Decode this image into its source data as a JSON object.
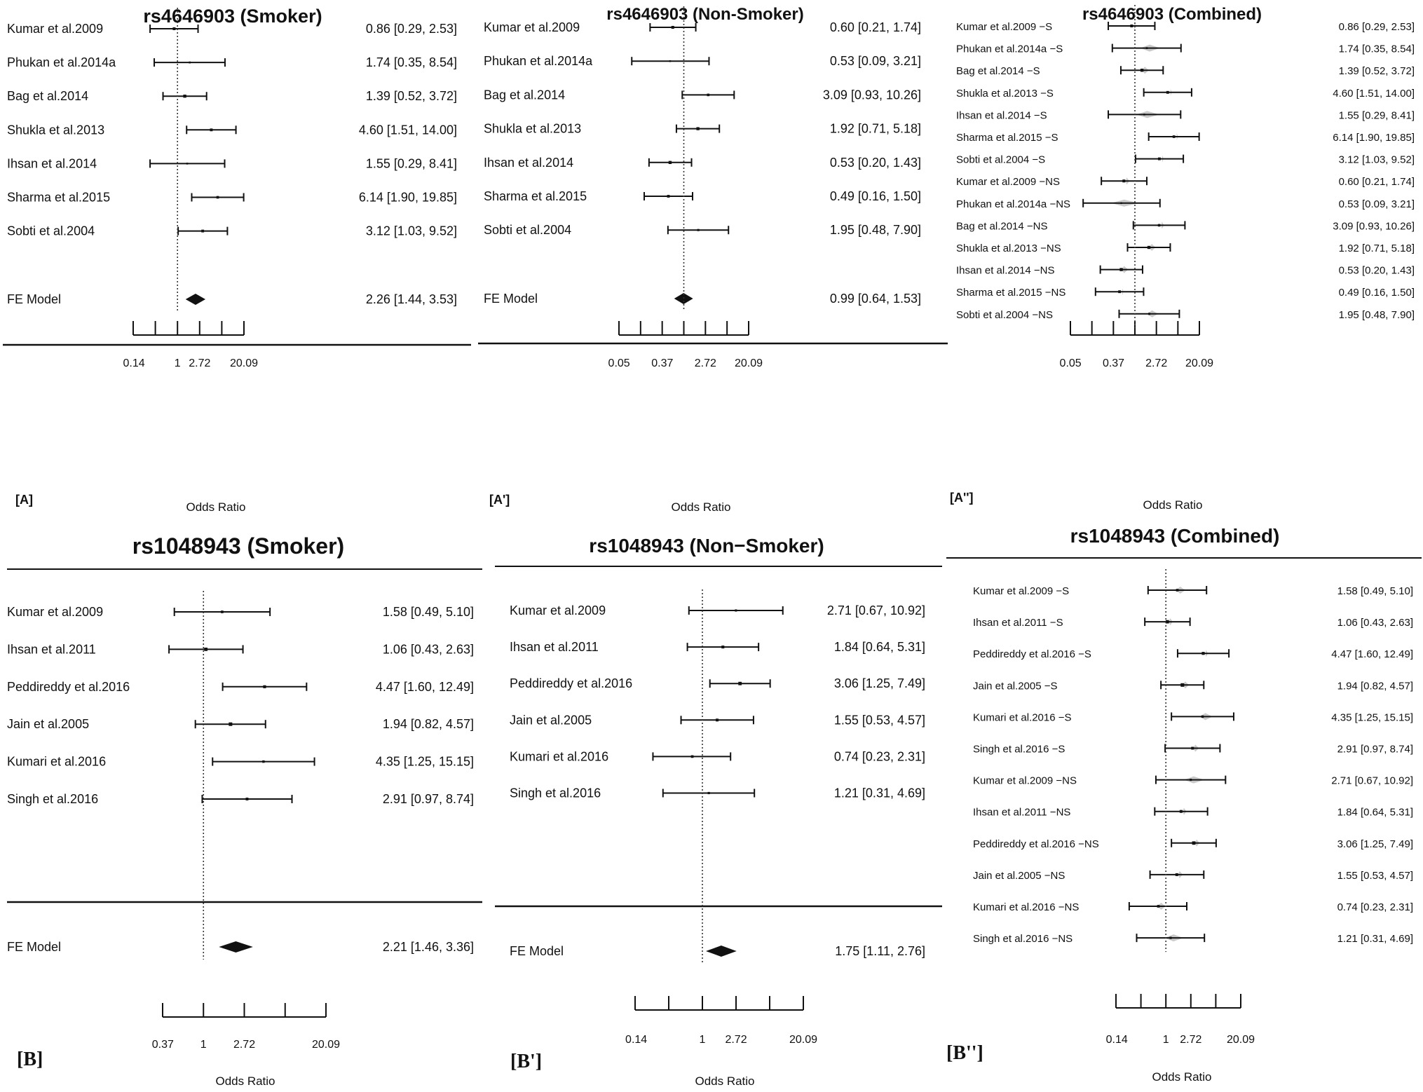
{
  "chart_data": [
    {
      "type": "forest",
      "panel_label": "[A]",
      "title": "rs4646903 (Smoker)",
      "xlabel": "Odds Ratio",
      "x_scale": "log",
      "ticks": [
        "0.14",
        "1",
        "2.72",
        "20.09"
      ],
      "studies": [
        {
          "label": "Kumar et al.2009",
          "or": 0.86,
          "lo": 0.29,
          "hi": 2.53,
          "text": "0.86 [0.29,  2.53]"
        },
        {
          "label": "Phukan et al.2014a",
          "or": 1.74,
          "lo": 0.35,
          "hi": 8.54,
          "text": "1.74 [0.35,  8.54]"
        },
        {
          "label": "Bag et al.2014",
          "or": 1.39,
          "lo": 0.52,
          "hi": 3.72,
          "text": "1.39 [0.52,  3.72]"
        },
        {
          "label": "Shukla et al.2013",
          "or": 4.6,
          "lo": 1.51,
          "hi": 14.0,
          "text": "4.60 [1.51, 14.00]"
        },
        {
          "label": "Ihsan et al.2014",
          "or": 1.55,
          "lo": 0.29,
          "hi": 8.41,
          "text": "1.55 [0.29,  8.41]"
        },
        {
          "label": "Sharma et al.2015",
          "or": 6.14,
          "lo": 1.9,
          "hi": 19.85,
          "text": "6.14 [1.90, 19.85]"
        },
        {
          "label": "Sobti et al.2004",
          "or": 3.12,
          "lo": 1.03,
          "hi": 9.52,
          "text": "3.12 [1.03,  9.52]"
        }
      ],
      "model": {
        "label": "FE Model",
        "or": 2.26,
        "lo": 1.44,
        "hi": 3.53,
        "text": "2.26 [1.44,  3.53]"
      }
    },
    {
      "type": "forest",
      "panel_label": "[A']",
      "title": "rs4646903 (Non-Smoker)",
      "xlabel": "Odds Ratio",
      "x_scale": "log",
      "ticks": [
        "0.05",
        "0.37",
        "2.72",
        "20.09"
      ],
      "studies": [
        {
          "label": "Kumar et al.2009",
          "or": 0.6,
          "lo": 0.21,
          "hi": 1.74,
          "text": "0.60 [0.21,  1.74]"
        },
        {
          "label": "Phukan et al.2014a",
          "or": 0.53,
          "lo": 0.09,
          "hi": 3.21,
          "text": "0.53 [0.09,  3.21]"
        },
        {
          "label": "Bag et al.2014",
          "or": 3.09,
          "lo": 0.93,
          "hi": 10.26,
          "text": "3.09 [0.93, 10.26]"
        },
        {
          "label": "Shukla et al.2013",
          "or": 1.92,
          "lo": 0.71,
          "hi": 5.18,
          "text": "1.92 [0.71,  5.18]"
        },
        {
          "label": "Ihsan et al.2014",
          "or": 0.53,
          "lo": 0.2,
          "hi": 1.43,
          "text": "0.53 [0.20,  1.43]"
        },
        {
          "label": "Sharma et al.2015",
          "or": 0.49,
          "lo": 0.16,
          "hi": 1.5,
          "text": "0.49 [0.16,  1.50]"
        },
        {
          "label": "Sobti et al.2004",
          "or": 1.95,
          "lo": 0.48,
          "hi": 7.9,
          "text": "1.95 [0.48,  7.90]"
        }
      ],
      "model": {
        "label": "FE Model",
        "or": 0.99,
        "lo": 0.64,
        "hi": 1.53,
        "text": "0.99 [0.64,  1.53]"
      }
    },
    {
      "type": "forest",
      "panel_label": "[A'']",
      "title": "rs4646903 (Combined)",
      "xlabel": "Odds Ratio",
      "x_scale": "log",
      "ticks": [
        "0.05",
        "0.37",
        "2.72",
        "20.09"
      ],
      "studies": [
        {
          "label": "Kumar et al.2009 −S",
          "or": 0.86,
          "lo": 0.29,
          "hi": 2.53,
          "text": "0.86 [0.29,  2.53]"
        },
        {
          "label": "Phukan et al.2014a −S",
          "or": 1.74,
          "lo": 0.35,
          "hi": 8.54,
          "text": "1.74 [0.35,  8.54]"
        },
        {
          "label": "Bag et al.2014 −S",
          "or": 1.39,
          "lo": 0.52,
          "hi": 3.72,
          "text": "1.39 [0.52,  3.72]"
        },
        {
          "label": "Shukla et al.2013 −S",
          "or": 4.6,
          "lo": 1.51,
          "hi": 14.0,
          "text": "4.60 [1.51, 14.00]"
        },
        {
          "label": "Ihsan et al.2014 −S",
          "or": 1.55,
          "lo": 0.29,
          "hi": 8.41,
          "text": "1.55 [0.29,  8.41]"
        },
        {
          "label": "Sharma et al.2015 −S",
          "or": 6.14,
          "lo": 1.9,
          "hi": 19.85,
          "text": "6.14 [1.90, 19.85]"
        },
        {
          "label": "Sobti et al.2004 −S",
          "or": 3.12,
          "lo": 1.03,
          "hi": 9.52,
          "text": "3.12 [1.03,  9.52]"
        },
        {
          "label": "Kumar et al.2009 −NS",
          "or": 0.6,
          "lo": 0.21,
          "hi": 1.74,
          "text": "0.60 [0.21,  1.74]"
        },
        {
          "label": "Phukan et al.2014a −NS",
          "or": 0.53,
          "lo": 0.09,
          "hi": 3.21,
          "text": "0.53 [0.09,  3.21]"
        },
        {
          "label": "Bag et al.2014 −NS",
          "or": 3.09,
          "lo": 0.93,
          "hi": 10.26,
          "text": "3.09 [0.93, 10.26]"
        },
        {
          "label": "Shukla et al.2013 −NS",
          "or": 1.92,
          "lo": 0.71,
          "hi": 5.18,
          "text": "1.92 [0.71,  5.18]"
        },
        {
          "label": "Ihsan et al.2014 −NS",
          "or": 0.53,
          "lo": 0.2,
          "hi": 1.43,
          "text": "0.53 [0.20,  1.43]"
        },
        {
          "label": "Sharma et al.2015 −NS",
          "or": 0.49,
          "lo": 0.16,
          "hi": 1.5,
          "text": "0.49 [0.16,  1.50]"
        },
        {
          "label": "Sobti et al.2004 −NS",
          "or": 1.95,
          "lo": 0.48,
          "hi": 7.9,
          "text": "1.95 [0.48,  7.90]"
        }
      ]
    },
    {
      "type": "forest",
      "panel_label": "[B]",
      "title": "rs1048943 (Smoker)",
      "xlabel": "Odds Ratio",
      "x_scale": "log",
      "ticks": [
        "0.37",
        "1",
        "2.72",
        "20.09"
      ],
      "studies": [
        {
          "label": "Kumar et al.2009",
          "or": 1.58,
          "lo": 0.49,
          "hi": 5.1,
          "text": "1.58 [0.49,  5.10]"
        },
        {
          "label": "Ihsan et al.2011",
          "or": 1.06,
          "lo": 0.43,
          "hi": 2.63,
          "text": "1.06 [0.43,  2.63]"
        },
        {
          "label": "Peddireddy et al.2016",
          "or": 4.47,
          "lo": 1.6,
          "hi": 12.49,
          "text": "4.47 [1.60, 12.49]"
        },
        {
          "label": "Jain et al.2005",
          "or": 1.94,
          "lo": 0.82,
          "hi": 4.57,
          "text": "1.94 [0.82,  4.57]"
        },
        {
          "label": "Kumari et al.2016",
          "or": 4.35,
          "lo": 1.25,
          "hi": 15.15,
          "text": "4.35 [1.25, 15.15]"
        },
        {
          "label": "Singh et al.2016",
          "or": 2.91,
          "lo": 0.97,
          "hi": 8.74,
          "text": "2.91 [0.97,  8.74]"
        }
      ],
      "model": {
        "label": "FE Model",
        "or": 2.21,
        "lo": 1.46,
        "hi": 3.36,
        "text": "2.21 [1.46,  3.36]"
      }
    },
    {
      "type": "forest",
      "panel_label": "[B']",
      "title": "rs1048943 (Non−Smoker)",
      "xlabel": "Odds Ratio",
      "x_scale": "log",
      "ticks": [
        "0.14",
        "1",
        "2.72",
        "20.09"
      ],
      "studies": [
        {
          "label": "Kumar et al.2009",
          "or": 2.71,
          "lo": 0.67,
          "hi": 10.92,
          "text": "2.71 [0.67, 10.92]"
        },
        {
          "label": "Ihsan et al.2011",
          "or": 1.84,
          "lo": 0.64,
          "hi": 5.31,
          "text": "1.84 [0.64,  5.31]"
        },
        {
          "label": "Peddireddy et al.2016",
          "or": 3.06,
          "lo": 1.25,
          "hi": 7.49,
          "text": "3.06 [1.25,  7.49]"
        },
        {
          "label": "Jain et al.2005",
          "or": 1.55,
          "lo": 0.53,
          "hi": 4.57,
          "text": "1.55 [0.53,  4.57]"
        },
        {
          "label": "Kumari et al.2016",
          "or": 0.74,
          "lo": 0.23,
          "hi": 2.31,
          "text": "0.74 [0.23,  2.31]"
        },
        {
          "label": "Singh et al.2016",
          "or": 1.21,
          "lo": 0.31,
          "hi": 4.69,
          "text": "1.21 [0.31,  4.69]"
        }
      ],
      "model": {
        "label": "FE Model",
        "or": 1.75,
        "lo": 1.11,
        "hi": 2.76,
        "text": "1.75 [1.11,  2.76]"
      }
    },
    {
      "type": "forest",
      "panel_label": "[B'']",
      "title": "rs1048943 (Combined)",
      "xlabel": "Odds Ratio",
      "x_scale": "log",
      "ticks": [
        "0.14",
        "1",
        "2.72",
        "20.09"
      ],
      "studies": [
        {
          "label": "Kumar et al.2009 −S",
          "or": 1.58,
          "lo": 0.49,
          "hi": 5.1,
          "text": "1.58 [0.49,  5.10]"
        },
        {
          "label": "Ihsan et al.2011 −S",
          "or": 1.06,
          "lo": 0.43,
          "hi": 2.63,
          "text": "1.06 [0.43,  2.63]"
        },
        {
          "label": "Peddireddy et al.2016 −S",
          "or": 4.47,
          "lo": 1.6,
          "hi": 12.49,
          "text": "4.47 [1.60, 12.49]"
        },
        {
          "label": "Jain et al.2005 −S",
          "or": 1.94,
          "lo": 0.82,
          "hi": 4.57,
          "text": "1.94 [0.82,  4.57]"
        },
        {
          "label": "Kumari et al.2016 −S",
          "or": 4.35,
          "lo": 1.25,
          "hi": 15.15,
          "text": "4.35 [1.25, 15.15]"
        },
        {
          "label": "Singh et al.2016 −S",
          "or": 2.91,
          "lo": 0.97,
          "hi": 8.74,
          "text": "2.91 [0.97,  8.74]"
        },
        {
          "label": "Kumar et al.2009 −NS",
          "or": 2.71,
          "lo": 0.67,
          "hi": 10.92,
          "text": "2.71 [0.67, 10.92]"
        },
        {
          "label": "Ihsan et al.2011 −NS",
          "or": 1.84,
          "lo": 0.64,
          "hi": 5.31,
          "text": "1.84 [0.64,  5.31]"
        },
        {
          "label": "Peddireddy et al.2016 −NS",
          "or": 3.06,
          "lo": 1.25,
          "hi": 7.49,
          "text": "3.06 [1.25,  7.49]"
        },
        {
          "label": "Jain et al.2005 −NS",
          "or": 1.55,
          "lo": 0.53,
          "hi": 4.57,
          "text": "1.55 [0.53,  4.57]"
        },
        {
          "label": "Kumari et al.2016 −NS",
          "or": 0.74,
          "lo": 0.23,
          "hi": 2.31,
          "text": "0.74 [0.23,  2.31]"
        },
        {
          "label": "Singh et al.2016 −NS",
          "or": 1.21,
          "lo": 0.31,
          "hi": 4.69,
          "text": "1.21 [0.31,  4.69]"
        }
      ]
    }
  ]
}
